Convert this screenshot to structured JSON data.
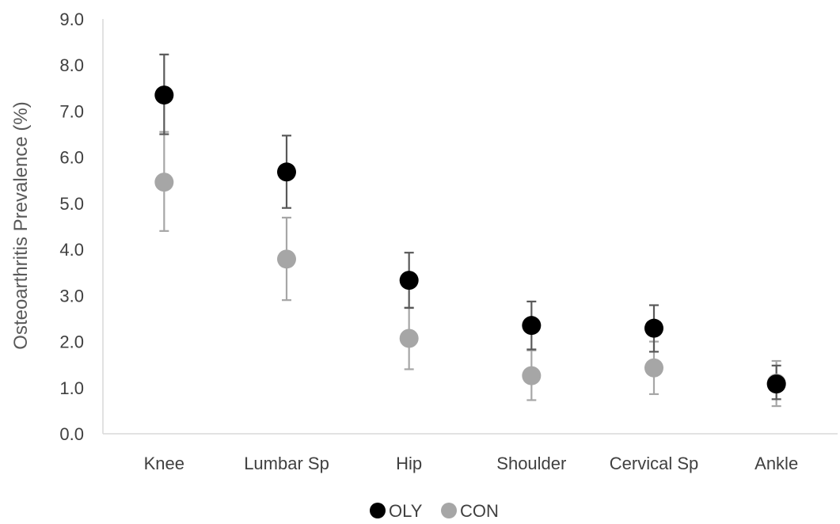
{
  "chart_data": {
    "type": "scatter",
    "title": "",
    "xlabel": "",
    "ylabel": "Osteoarthritis Prevalence (%)",
    "categories": [
      "Knee",
      "Lumbar Sp",
      "Hip",
      "Shoulder",
      "Cervical Sp",
      "Ankle"
    ],
    "ylim": [
      0,
      9
    ],
    "yticks": [
      "0.0",
      "1.0",
      "2.0",
      "3.0",
      "4.0",
      "5.0",
      "6.0",
      "7.0",
      "8.0",
      "9.0"
    ],
    "grid": false,
    "legend_position": "bottom",
    "error_bars": true,
    "series": [
      {
        "name": "OLY",
        "color": "#000000",
        "errorbar_color": "#595959",
        "values": [
          7.35,
          5.68,
          3.33,
          2.35,
          2.29,
          1.08
        ],
        "lower": [
          6.5,
          4.9,
          2.73,
          1.83,
          1.78,
          0.75
        ],
        "upper": [
          8.23,
          6.47,
          3.93,
          2.87,
          2.79,
          1.48
        ]
      },
      {
        "name": "CON",
        "color": "#a6a6a6",
        "errorbar_color": "#a6a6a6",
        "values": [
          5.46,
          3.79,
          2.07,
          1.26,
          1.43,
          1.1
        ],
        "lower": [
          4.4,
          2.9,
          1.4,
          0.73,
          0.86,
          0.6
        ],
        "upper": [
          6.55,
          4.69,
          2.74,
          1.81,
          2.0,
          1.58
        ]
      }
    ]
  }
}
